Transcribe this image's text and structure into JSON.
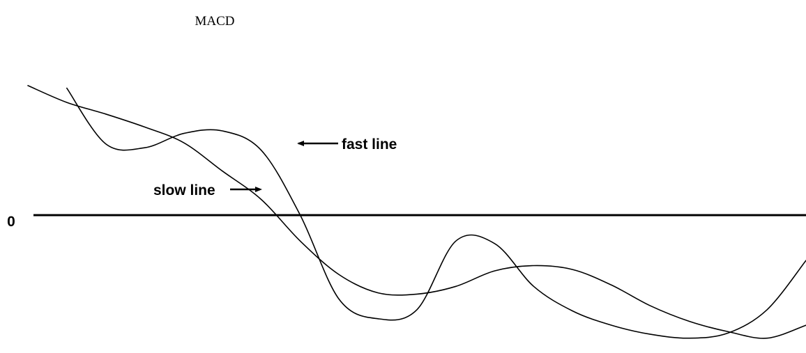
{
  "chart_data": {
    "type": "line",
    "title": "MACD",
    "xlabel": "",
    "ylabel": "",
    "y_tick_labels": [
      "0"
    ],
    "x": [
      0,
      5,
      10,
      15,
      20,
      25,
      30,
      35,
      40,
      45,
      50,
      55,
      60,
      65,
      70,
      75,
      80,
      85,
      90,
      95,
      100
    ],
    "ylim": [
      -1.0,
      1.15
    ],
    "grid": false,
    "legend": "none",
    "series": [
      {
        "name": "fast line",
        "values": [
          null,
          0.98,
          0.55,
          0.52,
          0.63,
          0.65,
          0.5,
          0.0,
          -0.65,
          -0.8,
          -0.73,
          -0.2,
          -0.22,
          -0.55,
          -0.74,
          -0.85,
          -0.92,
          -0.95,
          -0.91,
          -0.73,
          -0.35
        ]
      },
      {
        "name": "slow line",
        "values": [
          1.0,
          0.87,
          0.78,
          0.68,
          0.56,
          0.34,
          0.12,
          -0.2,
          -0.46,
          -0.6,
          -0.61,
          -0.55,
          -0.43,
          -0.39,
          -0.42,
          -0.54,
          -0.7,
          -0.82,
          -0.9,
          -0.95,
          -0.85
        ]
      }
    ],
    "annotations": [
      {
        "text": "fast line",
        "target_series": "fast line"
      },
      {
        "text": "slow line",
        "target_series": "slow line"
      }
    ]
  }
}
